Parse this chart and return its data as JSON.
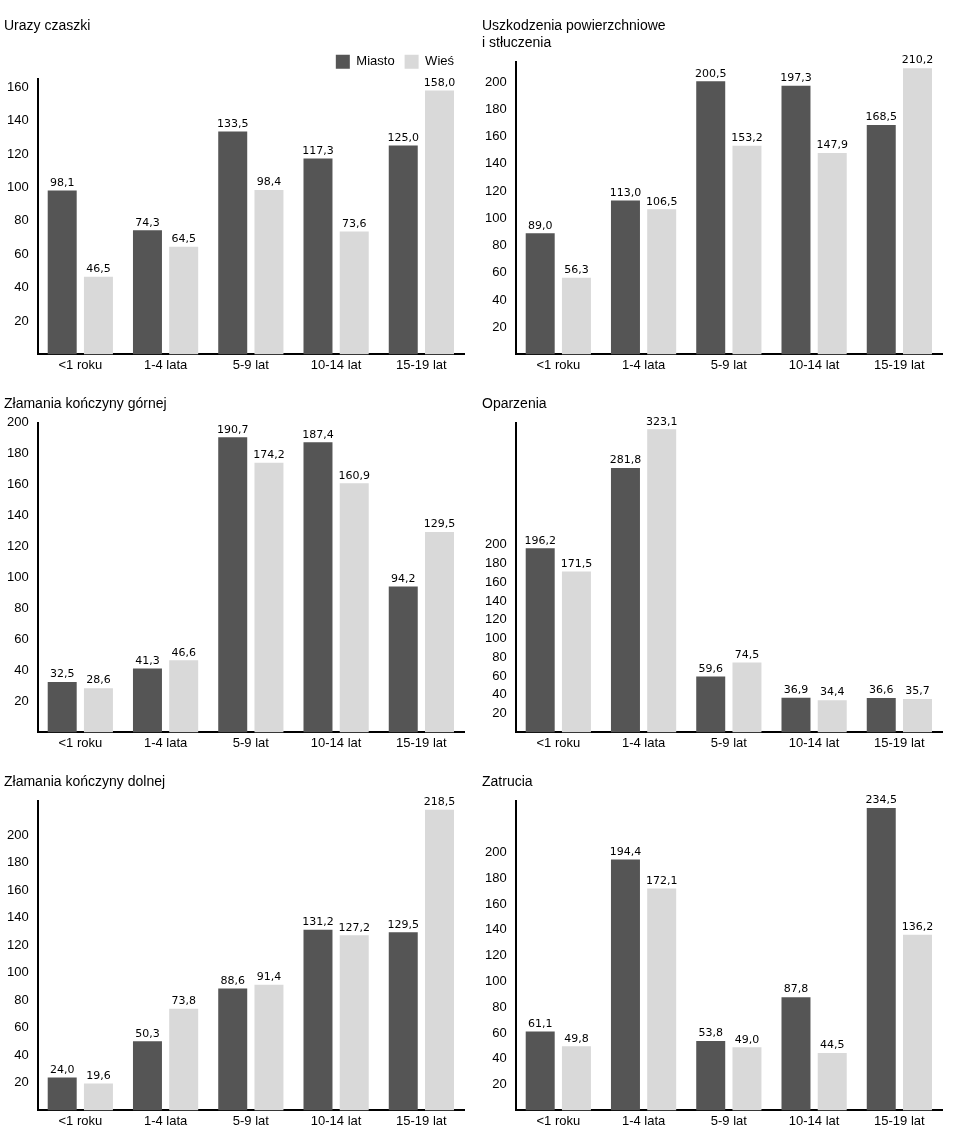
{
  "chart_data": [
    {
      "type": "bar",
      "title": "Urazy czaszki",
      "categories": [
        "<1 roku",
        "1-4 lata",
        "5-9 lat",
        "10-14 lat",
        "15-19 lat"
      ],
      "ylim": [
        0,
        165
      ],
      "yticks": [
        20,
        40,
        60,
        80,
        100,
        120,
        140,
        160
      ],
      "grid": false,
      "legend": "top right",
      "series": [
        {
          "name": "Miasto",
          "color": "#555555",
          "values": [
            98.1,
            74.3,
            133.5,
            117.3,
            125.0
          ],
          "value_labels": [
            "98,1",
            "74,3",
            "133,5",
            "117,3",
            "125,0"
          ]
        },
        {
          "name": "Wieś",
          "color": "#d9d9d9",
          "values": [
            46.5,
            64.5,
            98.4,
            73.6,
            158.0
          ],
          "value_labels": [
            "46,5",
            "64,5",
            "98,4",
            "73,6",
            "158,0"
          ]
        }
      ]
    },
    {
      "type": "bar",
      "title": "Uszkodzenia powierzchniowe\ni stłuczenia",
      "categories": [
        "<1 roku",
        "1-4 lata",
        "5-9 lat",
        "10-14 lat",
        "15-19 lat"
      ],
      "ylim": [
        0,
        215
      ],
      "yticks": [
        20,
        40,
        60,
        80,
        100,
        120,
        140,
        160,
        180,
        200
      ],
      "grid": false,
      "series": [
        {
          "color": "#555555",
          "values": [
            89.0,
            113.0,
            200.5,
            197.3,
            168.5
          ],
          "value_labels": [
            "89,0",
            "113,0",
            "200,5",
            "197,3",
            "168,5"
          ]
        },
        {
          "color": "#d9d9d9",
          "values": [
            56.3,
            106.5,
            153.2,
            147.9,
            210.2
          ],
          "value_labels": [
            "56,3",
            "106,5",
            "153,2",
            "147,9",
            "210,2"
          ]
        }
      ]
    },
    {
      "type": "bar",
      "title": "Złamania kończyny górnej",
      "categories": [
        "<1 roku",
        "1-4 lata",
        "5-9 lat",
        "10-14 lat",
        "15-19 lat"
      ],
      "ylim": [
        0,
        200
      ],
      "yticks": [
        20,
        40,
        60,
        80,
        100,
        120,
        140,
        160,
        180,
        200
      ],
      "grid": false,
      "series": [
        {
          "color": "#555555",
          "values": [
            32.5,
            41.3,
            190.7,
            187.4,
            94.2
          ],
          "value_labels": [
            "32,5",
            "41,3",
            "190,7",
            "187,4",
            "94,2"
          ]
        },
        {
          "color": "#d9d9d9",
          "values": [
            28.6,
            46.6,
            174.2,
            160.9,
            129.5
          ],
          "value_labels": [
            "28,6",
            "46,6",
            "174,2",
            "160,9",
            "129,5"
          ]
        }
      ]
    },
    {
      "type": "bar",
      "title": "Oparzenia",
      "categories": [
        "<1 roku",
        "1-4 lata",
        "5-9 lat",
        "10-14 lat",
        "15-19 lat"
      ],
      "ylim": [
        0,
        330
      ],
      "yticks": [
        20,
        40,
        60,
        80,
        100,
        120,
        140,
        160,
        180,
        200
      ],
      "grid": false,
      "series": [
        {
          "color": "#555555",
          "values": [
            196.2,
            281.8,
            59.6,
            36.9,
            36.6
          ],
          "value_labels": [
            "196,2",
            "281,8",
            "59,6",
            "36,9",
            "36,6"
          ]
        },
        {
          "color": "#d9d9d9",
          "values": [
            171.5,
            323.1,
            74.5,
            34.4,
            35.7
          ],
          "value_labels": [
            "171,5",
            "323,1",
            "74,5",
            "34,4",
            "35,7"
          ]
        }
      ]
    },
    {
      "type": "bar",
      "title": "Złamania kończyny dolnej",
      "categories": [
        "<1 roku",
        "1-4 lata",
        "5-9 lat",
        "10-14 lat",
        "15-19 lat"
      ],
      "ylim": [
        0,
        225
      ],
      "yticks": [
        20,
        40,
        60,
        80,
        100,
        120,
        140,
        160,
        180,
        200
      ],
      "grid": false,
      "series": [
        {
          "color": "#555555",
          "values": [
            24.0,
            50.3,
            88.6,
            131.2,
            129.5
          ],
          "value_labels": [
            "24,0",
            "50,3",
            "88,6",
            "131,2",
            "129,5"
          ]
        },
        {
          "color": "#d9d9d9",
          "values": [
            19.6,
            73.8,
            91.4,
            127.2,
            218.5
          ],
          "value_labels": [
            "19,6",
            "73,8",
            "91,4",
            "127,2",
            "218,5"
          ]
        }
      ]
    },
    {
      "type": "bar",
      "title": "Zatrucia",
      "categories": [
        "<1 roku",
        "1-4 lata",
        "5-9 lat",
        "10-14 lat",
        "15-19 lat"
      ],
      "ylim": [
        0,
        240
      ],
      "yticks": [
        20,
        40,
        60,
        80,
        100,
        120,
        140,
        160,
        180,
        200
      ],
      "grid": false,
      "series": [
        {
          "color": "#555555",
          "values": [
            61.1,
            194.4,
            53.8,
            87.8,
            234.5
          ],
          "value_labels": [
            "61,1",
            "194,4",
            "53,8",
            "87,8",
            "234,5"
          ]
        },
        {
          "color": "#d9d9d9",
          "values": [
            49.8,
            172.1,
            49.0,
            44.5,
            136.2
          ],
          "value_labels": [
            "49,8",
            "172,1",
            "49,0",
            "44,5",
            "136,2"
          ]
        }
      ]
    }
  ]
}
